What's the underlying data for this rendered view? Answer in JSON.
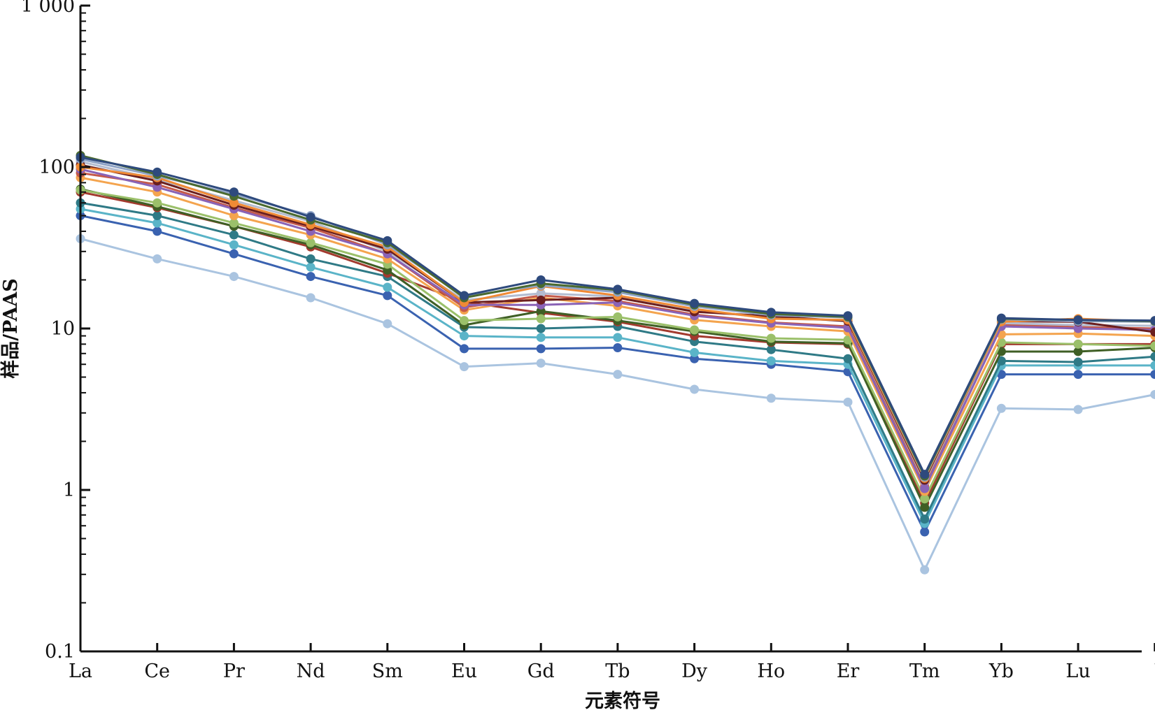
{
  "chart_data": {
    "type": "line",
    "title": "",
    "xlabel": "元素符号",
    "ylabel": "样品/PAAS",
    "y_scale": "log",
    "ylim": [
      0.1,
      1000
    ],
    "y_tick_values": [
      0.1,
      1,
      10,
      100,
      1000
    ],
    "y_tick_labels": [
      "0.1",
      "1",
      "10",
      "100",
      "1 000"
    ],
    "categories": [
      "La",
      "Ce",
      "Pr",
      "Nd",
      "Sm",
      "Eu",
      "Gd",
      "Tb",
      "Dy",
      "Ho",
      "Er",
      "Tm",
      "Yb",
      "Lu",
      "Y"
    ],
    "grid": false,
    "legend": "none",
    "series": [
      {
        "color": "#2e4a7d",
        "values": [
          115,
          93,
          70,
          49,
          35,
          16,
          20,
          17.5,
          14.3,
          12.6,
          12,
          1.25,
          11.6,
          11.3,
          11.2
        ]
      },
      {
        "color": "#4a6a2f",
        "values": [
          118,
          90,
          66,
          47,
          34,
          15.5,
          19,
          17.3,
          14,
          12.3,
          11.8,
          1.22,
          11.5,
          11.3,
          11.1
        ]
      },
      {
        "color": "#8ea3c6",
        "values": [
          112,
          88,
          68,
          50,
          33,
          15.8,
          18.5,
          16.8,
          13.7,
          12.1,
          11.7,
          1.2,
          11.4,
          11.1,
          11.0
        ]
      },
      {
        "color": "#f08a35",
        "values": [
          100,
          86,
          60,
          44,
          32,
          14.5,
          18.3,
          16,
          13.2,
          11.5,
          11.3,
          1.18,
          11.0,
          11.5,
          11.0
        ]
      },
      {
        "color": "#6b1f1f",
        "values": [
          103,
          82,
          58,
          43,
          31,
          14.5,
          15,
          15.5,
          12.7,
          11.9,
          11.1,
          1.15,
          11.1,
          11.0,
          9.5
        ]
      },
      {
        "color": "#8a63b6",
        "values": [
          97,
          75,
          55,
          40,
          29,
          14,
          14,
          14.5,
          12,
          10.8,
          10.1,
          1.02,
          10.3,
          10.0,
          9.8
        ]
      },
      {
        "color": "#b3bcd0",
        "values": [
          108,
          84,
          62,
          46,
          30,
          15,
          16.5,
          15.8,
          13,
          11.6,
          11.2,
          1.12,
          10.8,
          10.5,
          10.4
        ]
      },
      {
        "color": "#c55a4a",
        "values": [
          92,
          78,
          56,
          42,
          29,
          13.5,
          16,
          14.8,
          12.2,
          10.9,
          10.3,
          1.05,
          10.6,
          10.2,
          10.0
        ]
      },
      {
        "color": "#f4a44e",
        "values": [
          86,
          70,
          50,
          38,
          27,
          13,
          15.5,
          13.8,
          11.3,
          10.3,
          9.6,
          0.98,
          9.2,
          9.3,
          9.0
        ]
      },
      {
        "color": "#9bc06a",
        "values": [
          72,
          60,
          45,
          34,
          25,
          11.2,
          11.5,
          11.8,
          9.8,
          8.7,
          8.5,
          0.88,
          8.2,
          8.0,
          7.8
        ]
      },
      {
        "color": "#3f5f25",
        "values": [
          73,
          57,
          43,
          33,
          23,
          10.5,
          12.8,
          11.2,
          9.6,
          8.3,
          8.1,
          0.78,
          7.2,
          7.2,
          7.6
        ]
      },
      {
        "color": "#a33a2e",
        "values": [
          70,
          56,
          43,
          32,
          22,
          14.6,
          12.5,
          11,
          9,
          8.2,
          8.0,
          0.83,
          8.0,
          8.0,
          8.0
        ]
      },
      {
        "color": "#2f7a86",
        "values": [
          60,
          50,
          38,
          27,
          21,
          10.2,
          10,
          10.3,
          8.3,
          7.4,
          6.5,
          0.66,
          6.3,
          6.2,
          6.7
        ]
      },
      {
        "color": "#5ab4c8",
        "values": [
          55,
          45,
          33,
          24,
          18,
          9.0,
          8.8,
          8.8,
          7.1,
          6.3,
          6.0,
          0.62,
          5.9,
          5.9,
          5.9
        ]
      },
      {
        "color": "#3a62b0",
        "values": [
          50,
          40,
          29,
          21,
          16,
          7.5,
          7.5,
          7.6,
          6.5,
          6.0,
          5.4,
          0.55,
          5.2,
          5.2,
          5.2
        ]
      },
      {
        "color": "#aac4e0",
        "values": [
          36,
          27,
          21,
          15.5,
          10.7,
          5.8,
          6.1,
          5.2,
          4.2,
          3.7,
          3.5,
          0.32,
          3.2,
          3.15,
          3.9
        ]
      }
    ]
  }
}
